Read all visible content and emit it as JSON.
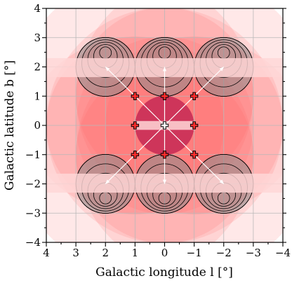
{
  "chart_data": {
    "type": "scatter",
    "xlabel": "Galactic longitude l [°]",
    "ylabel": "Galactic latitude b [°]",
    "xlim": [
      4,
      -4
    ],
    "ylim": [
      -4,
      4
    ],
    "xticks": [
      4,
      3,
      2,
      1,
      0,
      -1,
      -2,
      -3,
      -4
    ],
    "yticks": [
      -4,
      -3,
      -2,
      -1,
      0,
      1,
      2,
      3,
      4
    ],
    "xtick_labels": [
      "4",
      "3",
      "2",
      "1",
      "0",
      "−1",
      "−2",
      "−3",
      "−4"
    ],
    "ytick_labels": [
      "−4",
      "−3",
      "−2",
      "−1",
      "0",
      "1",
      "2",
      "3",
      "4"
    ],
    "grid": true,
    "fields": [
      {
        "l": 2,
        "b": 2
      },
      {
        "l": 0,
        "b": 2
      },
      {
        "l": -2,
        "b": 2
      },
      {
        "l": 2,
        "b": -2
      },
      {
        "l": 0,
        "b": -2
      },
      {
        "l": -2,
        "b": -2
      }
    ],
    "field_radius_deg": 1,
    "field_rings": [
      1,
      0.8,
      0.6,
      0.4,
      0.2
    ],
    "excluded_band_b": [
      1.65,
      2.3
    ],
    "center_field": {
      "l": 0,
      "b": 0,
      "radius_deg": 1
    },
    "pointing_crosses": [
      {
        "l": 0,
        "b": 0
      },
      {
        "l": 1,
        "b": 0
      },
      {
        "l": -1,
        "b": 0
      },
      {
        "l": 0,
        "b": 1
      },
      {
        "l": 0,
        "b": -1
      },
      {
        "l": 1,
        "b": 1
      },
      {
        "l": -1,
        "b": 1
      },
      {
        "l": 1,
        "b": -1
      },
      {
        "l": -1,
        "b": -1
      }
    ],
    "arrows": [
      {
        "from": [
          0,
          0
        ],
        "to": [
          2,
          2
        ]
      },
      {
        "from": [
          0,
          0
        ],
        "to": [
          0,
          2
        ]
      },
      {
        "from": [
          0,
          0
        ],
        "to": [
          -2,
          2
        ]
      },
      {
        "from": [
          0,
          0
        ],
        "to": [
          2,
          -2
        ]
      },
      {
        "from": [
          0,
          0
        ],
        "to": [
          0,
          -2
        ]
      },
      {
        "from": [
          0,
          0
        ],
        "to": [
          -2,
          -2
        ]
      }
    ],
    "fov_circles": [
      {
        "l": 0,
        "b": 0,
        "r": 4
      },
      {
        "l": 1,
        "b": 1,
        "r": 4
      },
      {
        "l": -1,
        "b": 1,
        "r": 4
      },
      {
        "l": 1,
        "b": -1,
        "r": 4
      },
      {
        "l": -1,
        "b": -1,
        "r": 4
      },
      {
        "l": 0,
        "b": 0,
        "r": 3
      },
      {
        "l": 0,
        "b": 1,
        "r": 3
      },
      {
        "l": 0,
        "b": -1,
        "r": 3
      },
      {
        "l": 1,
        "b": 0,
        "r": 3
      },
      {
        "l": -1,
        "b": 0,
        "r": 3
      }
    ],
    "colors": {
      "fov": "#ff5a5a",
      "field": "#8a8a8a",
      "center": "#c02050",
      "band": "#ffd7d7",
      "cross": "#ff2d2d"
    }
  }
}
